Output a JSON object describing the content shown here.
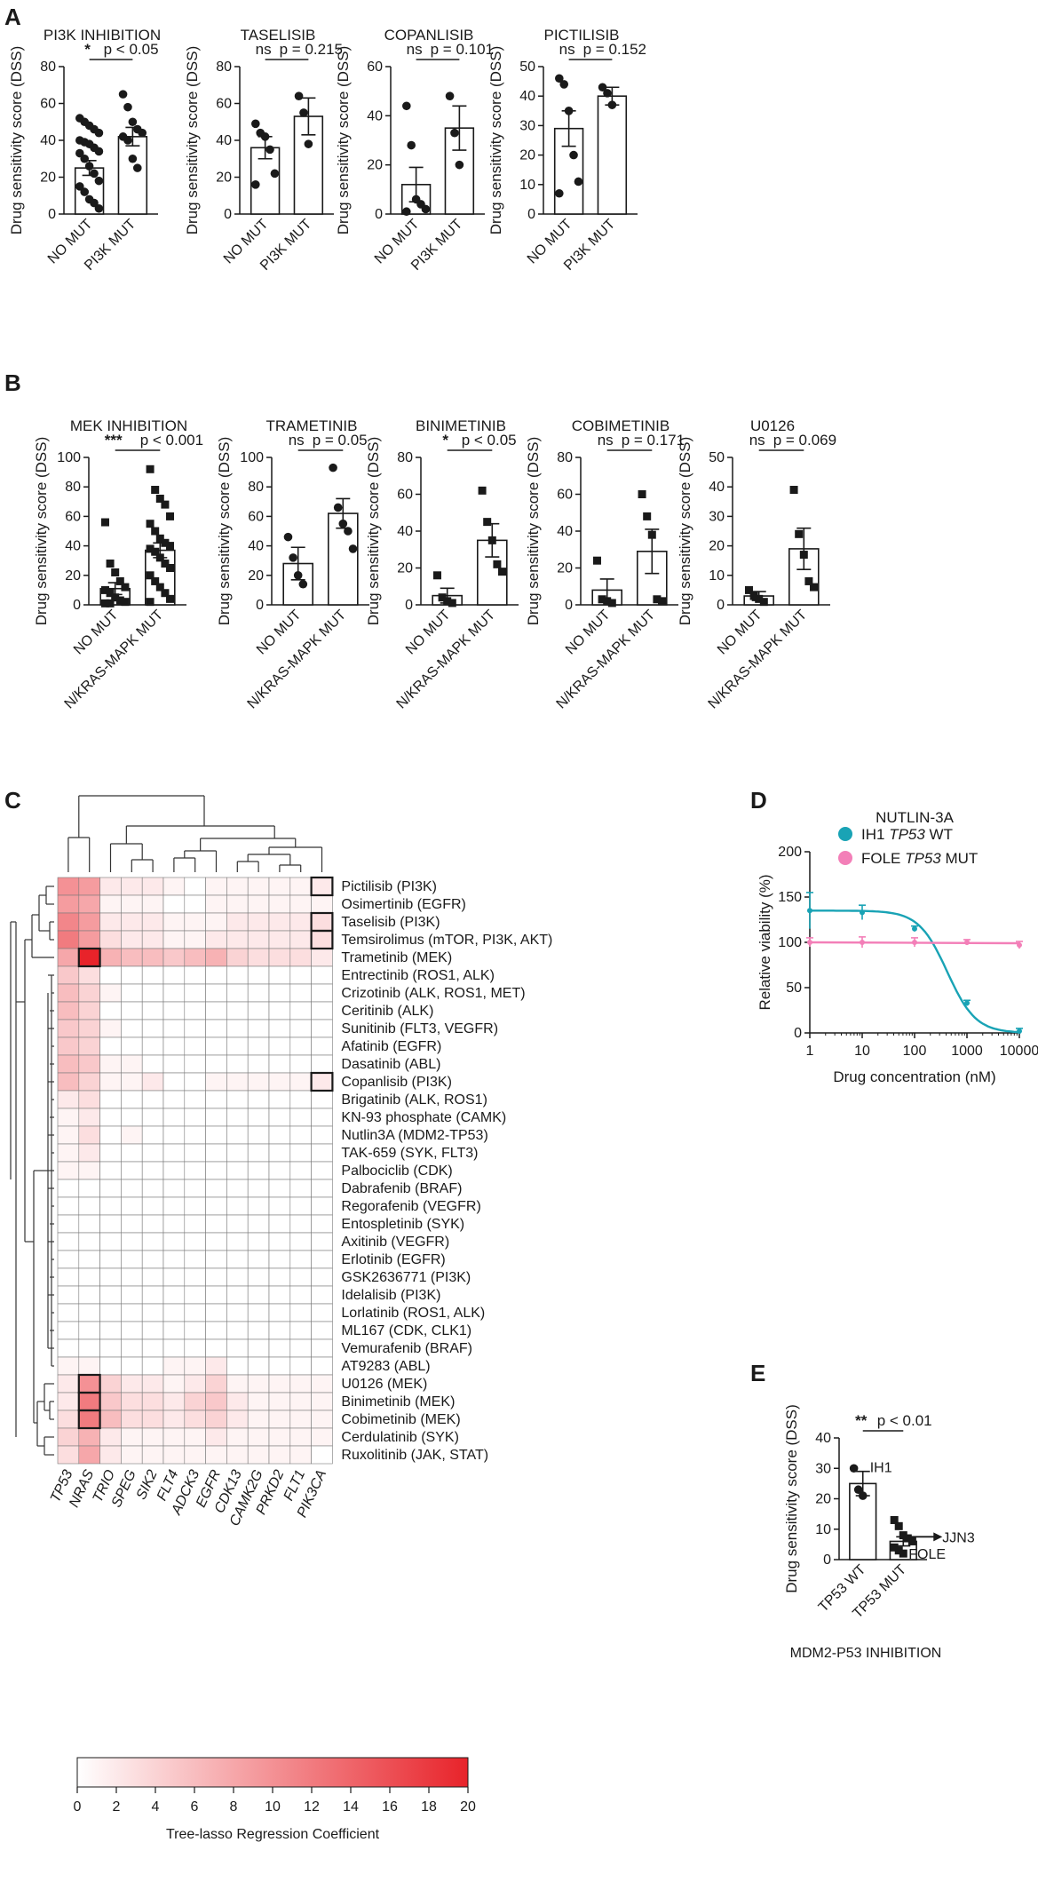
{
  "panels": {
    "a": "A",
    "b": "B",
    "c": "C",
    "d": "D",
    "e": "E"
  },
  "colors": {
    "heat_max": "#e8232a",
    "teal": "#19a3b5",
    "pink": "#f37fb8"
  },
  "chart_data": [
    {
      "id": "A1",
      "type": "bar",
      "title": "PI3K INHIBITION",
      "ylabel": "Drug sensitivity score (DSS)",
      "categories": [
        "NO MUT",
        "PI3K MUT"
      ],
      "ylim": [
        0,
        80
      ],
      "yticks": [
        0,
        20,
        40,
        60,
        80
      ],
      "means": [
        25,
        42
      ],
      "sem": [
        4,
        5
      ],
      "points": [
        [
          52,
          50,
          48,
          46,
          44,
          40,
          39,
          38,
          36,
          34,
          33,
          30,
          26,
          22,
          18,
          15,
          12,
          8,
          6,
          3
        ],
        [
          65,
          58,
          50,
          46,
          44,
          42,
          40,
          30,
          25
        ]
      ],
      "marker": "circle",
      "sig": "*",
      "sig_text": "p < 0.05"
    },
    {
      "id": "A2",
      "type": "bar",
      "title": "TASELISIB",
      "ylabel": "Drug sensitivity score (DSS)",
      "categories": [
        "NO MUT",
        "PI3K MUT"
      ],
      "ylim": [
        0,
        80
      ],
      "yticks": [
        0,
        20,
        40,
        60,
        80
      ],
      "means": [
        36,
        53
      ],
      "sem": [
        6,
        10
      ],
      "points": [
        [
          49,
          44,
          42,
          35,
          22,
          16
        ],
        [
          64,
          55,
          38
        ]
      ],
      "marker": "circle",
      "sig": "ns",
      "sig_text": "p = 0.215"
    },
    {
      "id": "A3",
      "type": "bar",
      "title": "COPANLISIB",
      "ylabel": "Drug sensitivity score (DSS)",
      "categories": [
        "NO MUT",
        "PI3K MUT"
      ],
      "ylim": [
        0,
        60
      ],
      "yticks": [
        0,
        20,
        40,
        60
      ],
      "means": [
        12,
        35
      ],
      "sem": [
        7,
        9
      ],
      "points": [
        [
          44,
          28,
          6,
          4,
          2,
          1
        ],
        [
          48,
          33,
          20
        ]
      ],
      "marker": "circle",
      "sig": "ns",
      "sig_text": "p = 0.101"
    },
    {
      "id": "A4",
      "type": "bar",
      "title": "PICTILISIB",
      "ylabel": "Drug sensitivity score (DSS)",
      "categories": [
        "NO MUT",
        "PI3K MUT"
      ],
      "ylim": [
        0,
        50
      ],
      "yticks": [
        0,
        10,
        20,
        30,
        40,
        50
      ],
      "means": [
        29,
        40
      ],
      "sem": [
        6,
        3
      ],
      "points": [
        [
          46,
          44,
          35,
          20,
          11,
          7
        ],
        [
          43,
          41,
          37
        ]
      ],
      "marker": "circle",
      "sig": "ns",
      "sig_text": "p = 0.152"
    },
    {
      "id": "B1",
      "type": "bar",
      "title": "MEK INHIBITION",
      "ylabel": "Drug sensitivity score (DSS)",
      "categories": [
        "NO MUT",
        "N/KRAS-MAPK MUT"
      ],
      "ylim": [
        0,
        100
      ],
      "yticks": [
        0,
        20,
        40,
        60,
        80,
        100
      ],
      "means": [
        11,
        37
      ],
      "sem": [
        4,
        5
      ],
      "points": [
        [
          56,
          28,
          22,
          16,
          12,
          10,
          8,
          5,
          3,
          2,
          1,
          1
        ],
        [
          92,
          78,
          72,
          68,
          60,
          55,
          50,
          45,
          42,
          40,
          38,
          36,
          32,
          28,
          25,
          20,
          16,
          12,
          8,
          4,
          2
        ]
      ],
      "marker": "square",
      "sig": "***",
      "sig_text": "p < 0.001"
    },
    {
      "id": "B2",
      "type": "bar",
      "title": "TRAMETINIB",
      "ylabel": "Drug sensitivity score (DSS)",
      "categories": [
        "NO MUT",
        "N/KRAS-MAPK MUT"
      ],
      "ylim": [
        0,
        100
      ],
      "yticks": [
        0,
        20,
        40,
        60,
        80,
        100
      ],
      "means": [
        28,
        62
      ],
      "sem": [
        11,
        10
      ],
      "points": [
        [
          46,
          32,
          20,
          14
        ],
        [
          93,
          66,
          55,
          50,
          38
        ]
      ],
      "marker": "circle",
      "sig": "ns",
      "sig_text": "p = 0.05"
    },
    {
      "id": "B3",
      "type": "bar",
      "title": "BINIMETINIB",
      "ylabel": "Drug sensitivity score (DSS)",
      "categories": [
        "NO MUT",
        "N/KRAS-MAPK MUT"
      ],
      "ylim": [
        0,
        80
      ],
      "yticks": [
        0,
        20,
        40,
        60,
        80
      ],
      "means": [
        5,
        35
      ],
      "sem": [
        4,
        9
      ],
      "points": [
        [
          16,
          4,
          2,
          1
        ],
        [
          62,
          45,
          35,
          22,
          18
        ]
      ],
      "marker": "square",
      "sig": "*",
      "sig_text": "p < 0.05"
    },
    {
      "id": "B4",
      "type": "bar",
      "title": "COBIMETINIB",
      "ylabel": "Drug sensitivity score (DSS)",
      "categories": [
        "NO MUT",
        "N/KRAS-MAPK MUT"
      ],
      "ylim": [
        0,
        80
      ],
      "yticks": [
        0,
        20,
        40,
        60,
        80
      ],
      "means": [
        8,
        29
      ],
      "sem": [
        6,
        12
      ],
      "points": [
        [
          24,
          3,
          2,
          1
        ],
        [
          60,
          48,
          38,
          3,
          2
        ]
      ],
      "marker": "square",
      "sig": "ns",
      "sig_text": "p = 0.171"
    },
    {
      "id": "B5",
      "type": "bar",
      "title": "U0126",
      "ylabel": "Drug sensitivity score (DSS)",
      "categories": [
        "NO MUT",
        "N/KRAS-MAPK MUT"
      ],
      "ylim": [
        0,
        50
      ],
      "yticks": [
        0,
        10,
        20,
        30,
        40,
        50
      ],
      "means": [
        3,
        19
      ],
      "sem": [
        1.5,
        7
      ],
      "points": [
        [
          5,
          3,
          2,
          1
        ],
        [
          39,
          24,
          17,
          8,
          6
        ]
      ],
      "marker": "square",
      "sig": "ns",
      "sig_text": "p = 0.069"
    },
    {
      "id": "C",
      "type": "heatmap",
      "rows": [
        "Pictilisib (PI3K)",
        "Osimertinib (EGFR)",
        "Taselisib (PI3K)",
        "Temsirolimus (mTOR, PI3K, AKT)",
        "Trametinib (MEK)",
        "Entrectinib (ROS1, ALK)",
        "Crizotinib (ALK, ROS1, MET)",
        "Ceritinib (ALK)",
        "Sunitinib (FLT3, VEGFR)",
        "Afatinib (EGFR)",
        "Dasatinib (ABL)",
        "Copanlisib (PI3K)",
        "Brigatinib (ALK, ROS1)",
        "KN-93 phosphate (CAMK)",
        "Nutlin3A (MDM2-TP53)",
        "TAK-659 (SYK, FLT3)",
        "Palbociclib (CDK)",
        "Dabrafenib (BRAF)",
        "Regorafenib (VEGFR)",
        "Entospletinib (SYK)",
        "Axitinib (VEGFR)",
        "Erlotinib (EGFR)",
        "GSK2636771 (PI3K)",
        "Idelalisib (PI3K)",
        "Lorlatinib (ROS1, ALK)",
        "ML167 (CDK, CLK1)",
        "Vemurafenib (BRAF)",
        "AT9283 (ABL)",
        "U0126 (MEK)",
        "Binimetinib (MEK)",
        "Cobimetinib (MEK)",
        "Cerdulatinib (SYK)",
        "Ruxolitinib (JAK, STAT)"
      ],
      "columns": [
        "TP53",
        "NRAS",
        "TRIO",
        "SPEG",
        "SIK2",
        "FLT4",
        "ADCK3",
        "EGFR",
        "CDK13",
        "CAMK2G",
        "PRKD2",
        "FLT1",
        "PIK3CA"
      ],
      "values": [
        [
          10,
          9,
          2,
          2,
          2,
          1,
          0,
          1,
          1,
          1,
          1,
          1,
          2
        ],
        [
          9,
          8,
          1,
          1,
          1,
          0,
          0,
          1,
          1,
          1,
          1,
          1,
          1
        ],
        [
          11,
          9,
          2,
          2,
          2,
          1,
          1,
          1,
          2,
          2,
          2,
          2,
          3
        ],
        [
          12,
          9,
          3,
          2,
          2,
          1,
          1,
          2,
          2,
          2,
          2,
          2,
          3
        ],
        [
          8,
          20,
          7,
          6,
          6,
          5,
          6,
          7,
          4,
          3,
          3,
          3,
          2
        ],
        [
          5,
          3,
          0,
          0,
          0,
          0,
          0,
          0,
          0,
          0,
          0,
          0,
          0
        ],
        [
          6,
          4,
          1,
          0,
          0,
          0,
          0,
          0,
          0,
          0,
          0,
          0,
          0
        ],
        [
          6,
          4,
          0,
          0,
          0,
          0,
          0,
          0,
          0,
          0,
          0,
          0,
          0
        ],
        [
          5,
          4,
          1,
          0,
          0,
          0,
          0,
          0,
          0,
          0,
          0,
          0,
          0
        ],
        [
          5,
          4,
          0,
          0,
          0,
          0,
          0,
          0,
          0,
          0,
          0,
          0,
          0
        ],
        [
          6,
          5,
          1,
          1,
          0,
          0,
          0,
          0,
          0,
          0,
          0,
          0,
          0
        ],
        [
          6,
          4,
          1,
          1,
          2,
          0,
          0,
          1,
          1,
          1,
          1,
          1,
          2
        ],
        [
          2,
          3,
          0,
          0,
          0,
          0,
          0,
          0,
          0,
          0,
          0,
          0,
          0
        ],
        [
          1,
          2,
          0,
          0,
          0,
          0,
          0,
          0,
          0,
          0,
          0,
          0,
          0
        ],
        [
          1,
          3,
          0,
          1,
          0,
          0,
          0,
          0,
          0,
          0,
          0,
          0,
          0
        ],
        [
          1,
          2,
          0,
          0,
          0,
          0,
          0,
          0,
          0,
          0,
          0,
          0,
          0
        ],
        [
          1,
          1,
          0,
          0,
          0,
          0,
          0,
          0,
          0,
          0,
          0,
          0,
          0
        ],
        [
          0,
          0,
          0,
          0,
          0,
          0,
          0,
          0,
          0,
          0,
          0,
          0,
          0
        ],
        [
          0,
          0,
          0,
          0,
          0,
          0,
          0,
          0,
          0,
          0,
          0,
          0,
          0
        ],
        [
          0,
          0,
          0,
          0,
          0,
          0,
          0,
          0,
          0,
          0,
          0,
          0,
          0
        ],
        [
          0,
          0,
          0,
          0,
          0,
          0,
          0,
          0,
          0,
          0,
          0,
          0,
          0
        ],
        [
          0,
          0,
          0,
          0,
          0,
          0,
          0,
          0,
          0,
          0,
          0,
          0,
          0
        ],
        [
          0,
          0,
          0,
          0,
          0,
          0,
          0,
          0,
          0,
          0,
          0,
          0,
          0
        ],
        [
          0,
          0,
          0,
          0,
          0,
          0,
          0,
          0,
          0,
          0,
          0,
          0,
          0
        ],
        [
          0,
          0,
          0,
          0,
          0,
          0,
          0,
          0,
          0,
          0,
          0,
          0,
          0
        ],
        [
          0,
          0,
          0,
          0,
          0,
          0,
          0,
          0,
          0,
          0,
          0,
          0,
          0
        ],
        [
          0,
          0,
          0,
          0,
          0,
          0,
          0,
          0,
          0,
          0,
          0,
          0,
          0
        ],
        [
          1,
          1,
          0,
          0,
          0,
          1,
          1,
          2,
          0,
          0,
          0,
          0,
          0
        ],
        [
          2,
          10,
          4,
          2,
          2,
          1,
          2,
          4,
          1,
          1,
          1,
          1,
          1
        ],
        [
          2,
          12,
          5,
          3,
          3,
          2,
          4,
          5,
          2,
          1,
          1,
          1,
          1
        ],
        [
          3,
          12,
          6,
          3,
          3,
          2,
          3,
          4,
          2,
          1,
          1,
          1,
          1
        ],
        [
          4,
          7,
          2,
          1,
          1,
          1,
          1,
          2,
          1,
          1,
          1,
          1,
          1
        ],
        [
          3,
          8,
          2,
          1,
          1,
          1,
          1,
          1,
          1,
          1,
          1,
          1,
          0
        ]
      ],
      "outlined_cells": [
        [
          0,
          12
        ],
        [
          2,
          12
        ],
        [
          3,
          12
        ],
        [
          4,
          1
        ],
        [
          11,
          12
        ],
        [
          28,
          1
        ],
        [
          29,
          1
        ],
        [
          30,
          1
        ]
      ],
      "colorbar_ticks": [
        0,
        2,
        4,
        6,
        8,
        10,
        12,
        14,
        16,
        18,
        20
      ],
      "colorbar_label": "Tree-lasso Regression Coefficient",
      "range": [
        0,
        20
      ]
    },
    {
      "id": "D",
      "type": "line",
      "title": "NUTLIN-3A",
      "xlabel": "Drug concentration (nM)",
      "ylabel": "Relative viability (%)",
      "xscale": "log",
      "xlim": [
        1,
        10000
      ],
      "xticks": [
        1,
        10,
        100,
        1000,
        10000
      ],
      "ylim": [
        0,
        200
      ],
      "yticks": [
        0,
        50,
        100,
        150,
        200
      ],
      "series": [
        {
          "name": "IH1",
          "name_italic": "TP53",
          "name_suffix": "WT",
          "color": "#19a3b5",
          "x": [
            1,
            10,
            100,
            1000,
            10000
          ],
          "y": [
            135,
            133,
            115,
            33,
            2
          ],
          "err": [
            20,
            8,
            3,
            3,
            3
          ]
        },
        {
          "name": "FOLE",
          "name_italic": "TP53",
          "name_suffix": "MUT",
          "color": "#f37fb8",
          "x": [
            1,
            10,
            100,
            1000,
            10000
          ],
          "y": [
            100,
            100,
            100,
            100,
            97
          ],
          "err": [
            5,
            6,
            5,
            3,
            4
          ]
        }
      ],
      "legend": "top-right"
    },
    {
      "id": "E",
      "type": "bar",
      "ylabel": "Drug sensitivity score (DSS)",
      "categories": [
        "TP53 WT",
        "TP53 MUT"
      ],
      "ylim": [
        0,
        40
      ],
      "yticks": [
        0,
        10,
        20,
        30,
        40
      ],
      "means": [
        25,
        6
      ],
      "sem": [
        4,
        1.5
      ],
      "points": [
        [
          30,
          23,
          21
        ],
        [
          13,
          11,
          8,
          7,
          6,
          4,
          3,
          2
        ]
      ],
      "sig": "**",
      "sig_text": "p < 0.01",
      "annotations": [
        "IH1",
        "JJN3",
        "FOLE"
      ],
      "footer": "MDM2-P53 INHIBITION"
    }
  ]
}
